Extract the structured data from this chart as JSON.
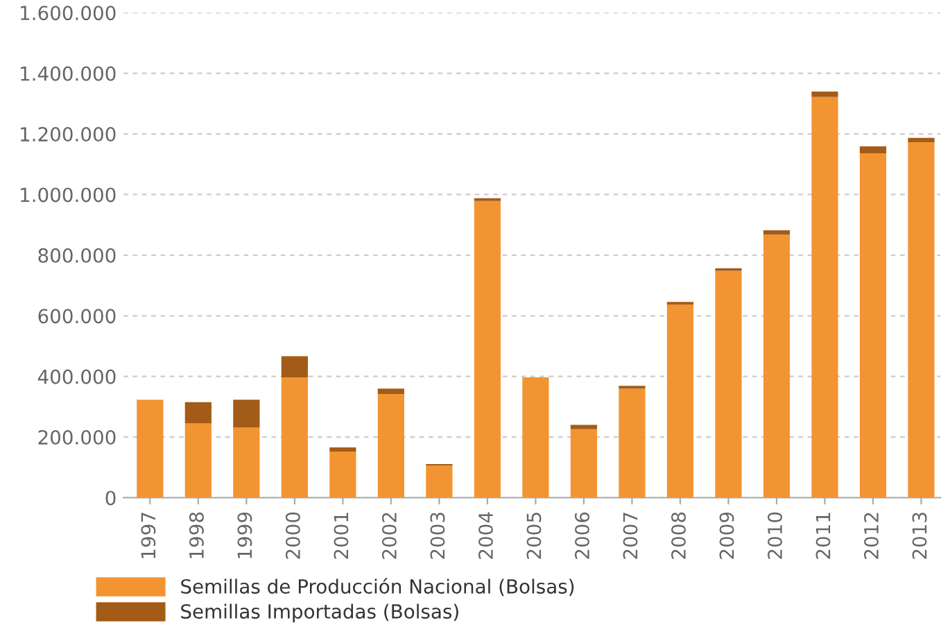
{
  "chart_data": {
    "type": "bar",
    "stacked": true,
    "categories": [
      "1997",
      "1998",
      "1999",
      "2000",
      "2001",
      "2002",
      "2003",
      "2004",
      "2005",
      "2006",
      "2007",
      "2008",
      "2009",
      "2010",
      "2011",
      "2012",
      "2013"
    ],
    "series": [
      {
        "name": "Semillas de Producción Nacional (Bolsas)",
        "color": "#f39433",
        "values": [
          323000,
          245000,
          231000,
          397000,
          152000,
          342000,
          106000,
          979000,
          397000,
          226000,
          360000,
          637000,
          748000,
          868000,
          1322000,
          1136000,
          1173000
        ]
      },
      {
        "name": "Semillas Importadas (Bolsas)",
        "color": "#a35c17",
        "values": [
          0,
          70000,
          92000,
          70000,
          14000,
          18000,
          5000,
          9000,
          0,
          14000,
          9000,
          9000,
          9000,
          14000,
          18000,
          23000,
          14000
        ]
      }
    ],
    "ylim": [
      0,
      1600000
    ],
    "yticks": [
      {
        "value": 0,
        "label": "0"
      },
      {
        "value": 200000,
        "label": "200.000"
      },
      {
        "value": 400000,
        "label": "400.000"
      },
      {
        "value": 600000,
        "label": "600.000"
      },
      {
        "value": 800000,
        "label": "800.000"
      },
      {
        "value": 1000000,
        "label": "1.000.000"
      },
      {
        "value": 1200000,
        "label": "1.200.000"
      },
      {
        "value": 1400000,
        "label": "1.400.000"
      },
      {
        "value": 1600000,
        "label": "1.600.000"
      }
    ],
    "grid": "y",
    "legend": "bottom left"
  }
}
